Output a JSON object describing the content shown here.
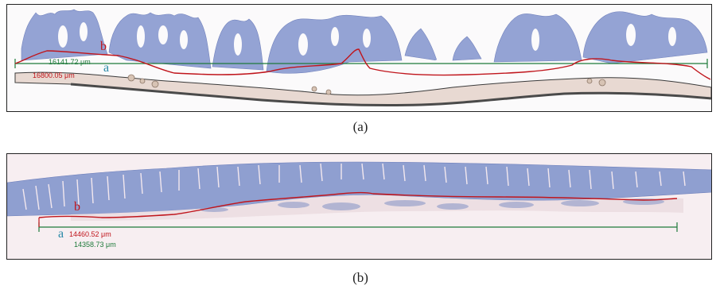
{
  "panels": [
    {
      "caption": "(a)",
      "label_b": "b",
      "label_a": "a",
      "measure_green": "16141.72 μm",
      "measure_red": "16800.05 μm"
    },
    {
      "caption": "(b)",
      "label_b": "b",
      "label_a": "a",
      "measure_red": "14460.52 μm",
      "measure_green": "14358.73 μm"
    }
  ],
  "colors": {
    "tissue": "#8f9fd0",
    "stroma": "#e9dcd6",
    "line_b": "#c0151c",
    "line_a": "#1e7a3a",
    "label_a": "#2a8aa8"
  }
}
